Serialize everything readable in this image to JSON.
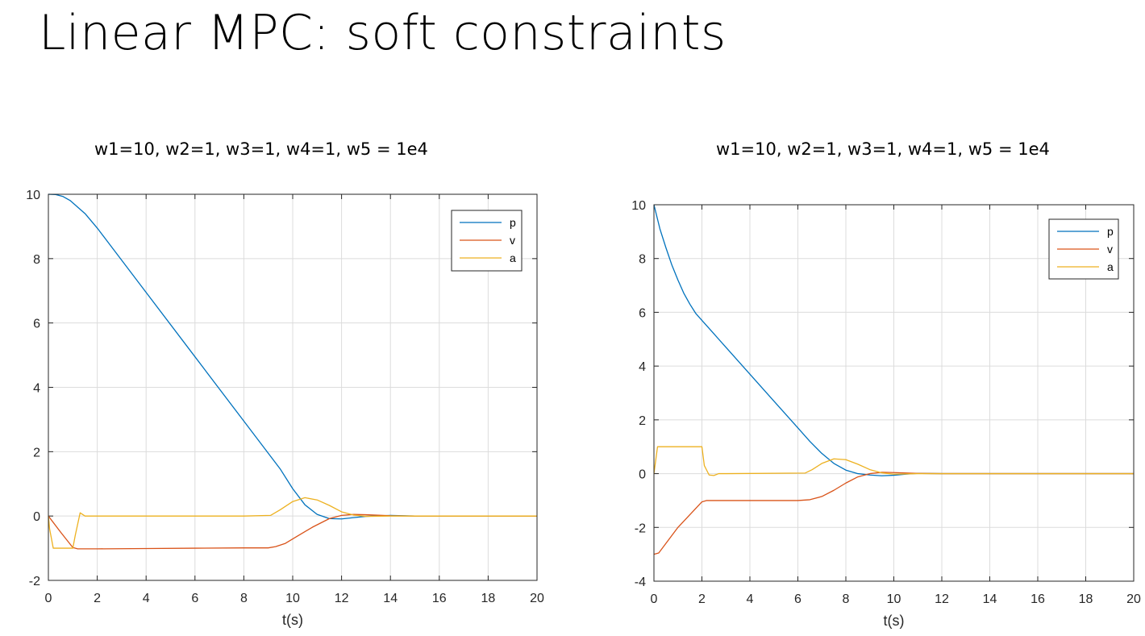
{
  "slide": {
    "title": "Linear MPC: soft constraints"
  },
  "chart_data": [
    {
      "type": "line",
      "title": "w1=10, w2=1, w3=1, w4=1, w5 = 1e4",
      "xlabel": "t(s)",
      "ylabel": "",
      "xlim": [
        0,
        20
      ],
      "ylim": [
        -2,
        10
      ],
      "xticks": [
        0,
        2,
        4,
        6,
        8,
        10,
        12,
        14,
        16,
        18,
        20
      ],
      "yticks": [
        -2,
        0,
        2,
        4,
        6,
        8,
        10
      ],
      "grid": true,
      "legend_position": "top-right",
      "series": [
        {
          "name": "p",
          "color": "#0072BD",
          "x": [
            0,
            0.3,
            0.6,
            0.9,
            1.2,
            1.5,
            2,
            4,
            6,
            8,
            9.5,
            10,
            10.5,
            11,
            11.5,
            12,
            12.5,
            13,
            14,
            15,
            20
          ],
          "y": [
            10,
            9.99,
            9.93,
            9.8,
            9.6,
            9.4,
            8.95,
            6.95,
            4.95,
            2.95,
            1.45,
            0.85,
            0.35,
            0.05,
            -0.08,
            -0.09,
            -0.05,
            -0.01,
            0.02,
            0,
            0
          ]
        },
        {
          "name": "v",
          "color": "#D95319",
          "x": [
            0,
            0.5,
            1.0,
            1.2,
            2,
            4,
            6,
            8,
            9,
            9.3,
            9.7,
            10.2,
            10.8,
            11.5,
            12,
            12.5,
            13,
            14,
            15,
            20
          ],
          "y": [
            0,
            -0.5,
            -0.98,
            -1.02,
            -1.02,
            -1.01,
            -1.0,
            -0.99,
            -0.99,
            -0.95,
            -0.85,
            -0.62,
            -0.35,
            -0.08,
            0.02,
            0.05,
            0.04,
            0.01,
            0,
            0
          ]
        },
        {
          "name": "a",
          "color": "#EDB120",
          "x": [
            0,
            0.05,
            0.2,
            1.0,
            1.1,
            1.3,
            1.5,
            2,
            4,
            6,
            8,
            9.1,
            9.5,
            10,
            10.5,
            11,
            11.5,
            12,
            12.5,
            13,
            14,
            20
          ],
          "y": [
            0,
            -0.4,
            -1.0,
            -1.0,
            -0.6,
            0.1,
            0.0,
            0.0,
            0,
            0,
            0,
            0.02,
            0.2,
            0.45,
            0.57,
            0.5,
            0.33,
            0.13,
            0.03,
            -0.01,
            0,
            0
          ]
        }
      ]
    },
    {
      "type": "line",
      "title": "w1=10, w2=1, w3=1, w4=1, w5 = 1e4",
      "xlabel": "t(s)",
      "ylabel": "",
      "xlim": [
        0,
        20
      ],
      "ylim": [
        -4,
        10
      ],
      "xticks": [
        0,
        2,
        4,
        6,
        8,
        10,
        12,
        14,
        16,
        18,
        20
      ],
      "yticks": [
        -4,
        -2,
        0,
        2,
        4,
        6,
        8,
        10
      ],
      "grid": true,
      "legend_position": "top-right",
      "series": [
        {
          "name": "p",
          "color": "#0072BD",
          "x": [
            0,
            0.25,
            0.5,
            0.75,
            1.0,
            1.25,
            1.5,
            1.75,
            2,
            2.5,
            3,
            4,
            5,
            6,
            6.5,
            7,
            7.5,
            8,
            8.5,
            9,
            9.5,
            10,
            10.5,
            11,
            12,
            20
          ],
          "y": [
            10,
            9.1,
            8.4,
            7.75,
            7.2,
            6.7,
            6.3,
            5.95,
            5.7,
            5.2,
            4.7,
            3.7,
            2.7,
            1.7,
            1.2,
            0.75,
            0.38,
            0.13,
            0.0,
            -0.05,
            -0.08,
            -0.06,
            -0.02,
            0.01,
            0,
            0
          ]
        },
        {
          "name": "v",
          "color": "#D95319",
          "x": [
            0,
            0.2,
            1.0,
            2.0,
            2.2,
            4,
            6,
            6.5,
            7,
            7.5,
            8,
            8.5,
            9,
            9.5,
            10,
            11,
            12,
            20
          ],
          "y": [
            -3,
            -2.95,
            -2.0,
            -1.05,
            -1.0,
            -1.0,
            -1.0,
            -0.97,
            -0.85,
            -0.62,
            -0.35,
            -0.12,
            0.0,
            0.05,
            0.04,
            0.01,
            0,
            0
          ]
        },
        {
          "name": "a",
          "color": "#EDB120",
          "x": [
            0,
            0.15,
            0.3,
            2.0,
            2.1,
            2.3,
            2.5,
            2.7,
            3,
            6.3,
            6.6,
            7,
            7.5,
            8,
            8.5,
            9,
            9.5,
            10,
            11,
            20
          ],
          "y": [
            0,
            1.0,
            1.0,
            1.0,
            0.3,
            -0.05,
            -0.07,
            0.0,
            0.0,
            0.02,
            0.15,
            0.38,
            0.55,
            0.52,
            0.35,
            0.15,
            0.03,
            -0.02,
            0,
            0
          ]
        }
      ]
    }
  ]
}
